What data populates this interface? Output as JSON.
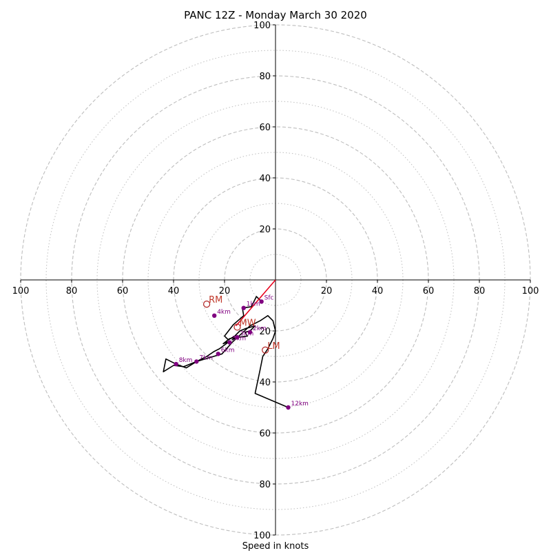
{
  "chart_data": {
    "type": "line",
    "title": "PANC 12Z - Monday March 30 2020",
    "xlabel": "Speed in knots",
    "xlim": [
      -100,
      100
    ],
    "ylim": [
      -100,
      100
    ],
    "ring_major": [
      20,
      40,
      60,
      80,
      100
    ],
    "ring_minor": [
      10,
      30,
      50,
      70,
      90
    ],
    "x_ticks": [
      {
        "value": -100,
        "label": "100"
      },
      {
        "value": -80,
        "label": "80"
      },
      {
        "value": -60,
        "label": "60"
      },
      {
        "value": -40,
        "label": "40"
      },
      {
        "value": -20,
        "label": "20"
      },
      {
        "value": 20,
        "label": "20"
      },
      {
        "value": 40,
        "label": "40"
      },
      {
        "value": 60,
        "label": "60"
      },
      {
        "value": 80,
        "label": "80"
      },
      {
        "value": 100,
        "label": "100"
      }
    ],
    "y_ticks": [
      {
        "value": 100,
        "label": "100"
      },
      {
        "value": 80,
        "label": "80"
      },
      {
        "value": 60,
        "label": "60"
      },
      {
        "value": 40,
        "label": "40"
      },
      {
        "value": 20,
        "label": "20"
      },
      {
        "value": -20,
        "label": "20"
      },
      {
        "value": -40,
        "label": "40"
      },
      {
        "value": -60,
        "label": "60"
      },
      {
        "value": -80,
        "label": "80"
      },
      {
        "value": -100,
        "label": "100"
      }
    ],
    "trace": [
      [
        -5.5,
        -8.5
      ],
      [
        -7.5,
        -6.5
      ],
      [
        -9.5,
        -10.5
      ],
      [
        -13,
        -11
      ],
      [
        -12.5,
        -14
      ],
      [
        -16.5,
        -17.5
      ],
      [
        -20,
        -22
      ],
      [
        -18.5,
        -23.5
      ],
      [
        -16,
        -22
      ],
      [
        -14,
        -20
      ],
      [
        -11.5,
        -19
      ],
      [
        -8,
        -18
      ],
      [
        -10,
        -20
      ],
      [
        -12,
        -20.5
      ],
      [
        -11,
        -22
      ],
      [
        -15,
        -22.5
      ],
      [
        -17,
        -23.5
      ],
      [
        -15.5,
        -22.5
      ],
      [
        -18,
        -23
      ],
      [
        -20.5,
        -25
      ],
      [
        -18,
        -24
      ],
      [
        -22,
        -27
      ],
      [
        -24,
        -28
      ],
      [
        -27,
        -30
      ],
      [
        -31,
        -32
      ],
      [
        -36,
        -34
      ],
      [
        -40,
        -33.5
      ],
      [
        -44,
        -36
      ],
      [
        -43,
        -31
      ],
      [
        -39,
        -33
      ],
      [
        -35,
        -34.5
      ],
      [
        -31,
        -32
      ],
      [
        -26,
        -30.5
      ],
      [
        -21,
        -29
      ],
      [
        -17,
        -24.5
      ],
      [
        -10,
        -18
      ],
      [
        -6,
        -16
      ],
      [
        -3,
        -14
      ],
      [
        -1,
        -16
      ],
      [
        0,
        -20
      ],
      [
        -1,
        -23
      ],
      [
        -3,
        -27
      ],
      [
        -5,
        -30
      ],
      [
        -6,
        -35
      ],
      [
        -8,
        -44.5
      ],
      [
        5,
        -50
      ]
    ],
    "heights": [
      {
        "label": "Sfc",
        "x": -5.5,
        "y": -8.5
      },
      {
        "label": "1km",
        "x": -12.5,
        "y": -11
      },
      {
        "label": "2km",
        "x": -10,
        "y": -20.5
      },
      {
        "label": "3km",
        "x": -15,
        "y": -22.5
      },
      {
        "label": "4km",
        "x": -24,
        "y": -14
      },
      {
        "label": "5km",
        "x": -18,
        "y": -24.5
      },
      {
        "label": "6km",
        "x": -22.5,
        "y": -29
      },
      {
        "label": "7km",
        "x": -31,
        "y": -32
      },
      {
        "label": "8km",
        "x": -39,
        "y": -33
      },
      {
        "label": "12km",
        "x": 5,
        "y": -50
      }
    ],
    "storm_motions": [
      {
        "label": "RM",
        "x": -27,
        "y": -9.5
      },
      {
        "label": "MW",
        "x": -15,
        "y": -18.5
      },
      {
        "label": "LM",
        "x": -4,
        "y": -27.5
      }
    ],
    "bunkers_line": {
      "from": [
        0,
        0
      ],
      "to": [
        -15.5,
        -18
      ]
    },
    "colors": {
      "trace": "#000000",
      "height_marker": "#800080",
      "storm_motion": "#b22222",
      "bunkers_line": "#e8001c",
      "grid": "#bdbdbd"
    }
  }
}
